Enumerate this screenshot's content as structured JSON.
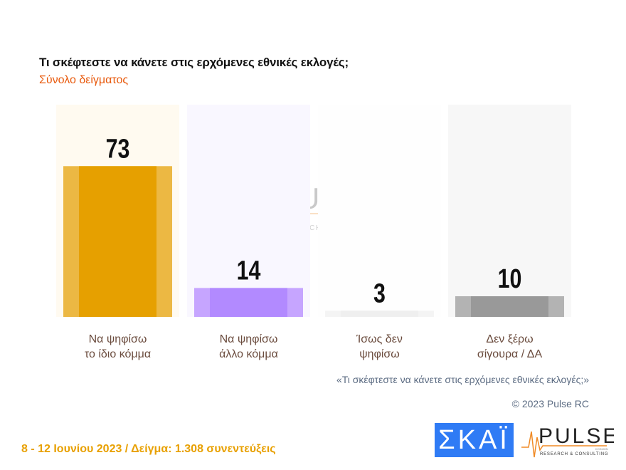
{
  "header": {
    "title": "Τι σκέφτεστε να κάνετε στις ερχόμενες εθνικές εκλογές;",
    "subtitle": "Σύνολο δείγματος"
  },
  "chart_data": {
    "type": "bar",
    "categories": [
      "Να ψηφίσω|το ίδιο κόμμα",
      "Να ψηφίσω|άλλο κόμμα",
      "Ίσως δεν|ψηφίσω",
      "Δεν ξέρω|σίγουρα / ΔΑ"
    ],
    "values": [
      73,
      14,
      3,
      10
    ],
    "ylim": [
      0,
      100
    ],
    "grid": false,
    "colors": [
      {
        "bar": "#e6a000",
        "edge": "#ecb843",
        "panel": "#fffaf0"
      },
      {
        "bar": "#b28aff",
        "edge": "#c6a5ff",
        "panel": "#f9f7ff"
      },
      {
        "bar": "#efefef",
        "edge": "#f4f4f4",
        "panel": "#fefefe"
      },
      {
        "bar": "#999999",
        "edge": "#b3b3b3",
        "panel": "#f7f7f7"
      }
    ]
  },
  "notes": {
    "question": "«Τι σκέφτεστε να κάνετε στις ερχόμενες εθνικές εκλογές;»",
    "copyright": "© 2023 Pulse RC"
  },
  "footer": {
    "text": "8 - 12  Ιουνίου  2023  /  Δείγμα:  1.308 συνεντεύξεις"
  },
  "logos": {
    "skai": "ΣΚΑΪ",
    "pulse": "PULSE",
    "pulse_sub": "RESEARCH & CONSULTING",
    "pulse_tag": "KOSMON"
  }
}
